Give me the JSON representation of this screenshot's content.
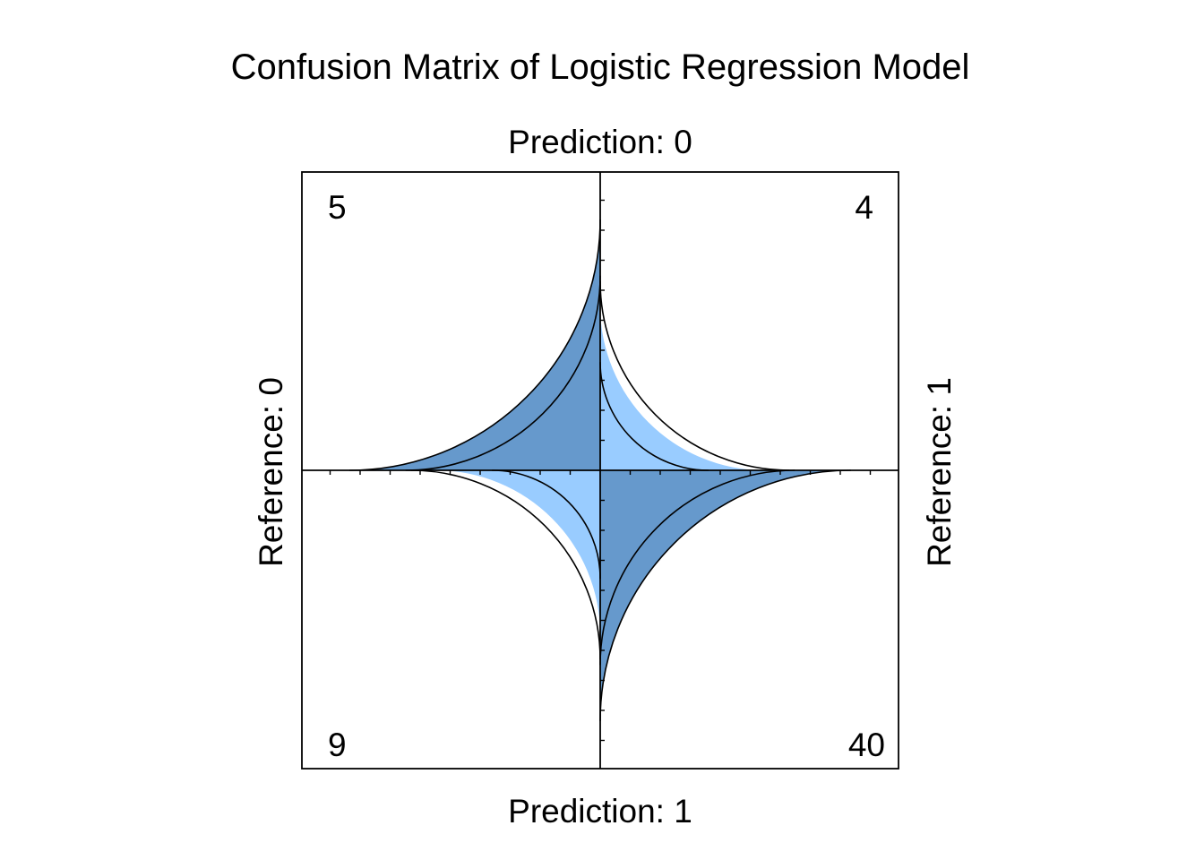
{
  "chart_data": {
    "type": "fourfold",
    "title": "Confusion Matrix of Logistic Regression Model",
    "top_label": "Prediction: 0",
    "bottom_label": "Prediction: 1",
    "left_label": "Reference: 0",
    "right_label": "Reference: 1",
    "cells": [
      {
        "quadrant": "top-left",
        "prediction": "0",
        "reference": "0",
        "count": "5",
        "value": 5,
        "fill": "#6699CC"
      },
      {
        "quadrant": "top-right",
        "prediction": "0",
        "reference": "1",
        "count": "4",
        "value": 4,
        "fill": "#99CCFF"
      },
      {
        "quadrant": "bottom-left",
        "prediction": "1",
        "reference": "0",
        "count": "9",
        "value": 9,
        "fill": "#99CCFF"
      },
      {
        "quadrant": "bottom-right",
        "prediction": "1",
        "reference": "1",
        "count": "40",
        "value": 40,
        "fill": "#6699CC"
      }
    ],
    "confidence_rings": {
      "top-left": {
        "inner": 0.71,
        "outer": 0.915
      },
      "top-right": {
        "inner": 0.395,
        "outer": 0.69
      },
      "bottom-left": {
        "inner": 0.395,
        "outer": 0.69
      },
      "bottom-right": {
        "inner": 0.71,
        "outer": 0.915
      }
    },
    "grid": false,
    "legend": "none"
  }
}
